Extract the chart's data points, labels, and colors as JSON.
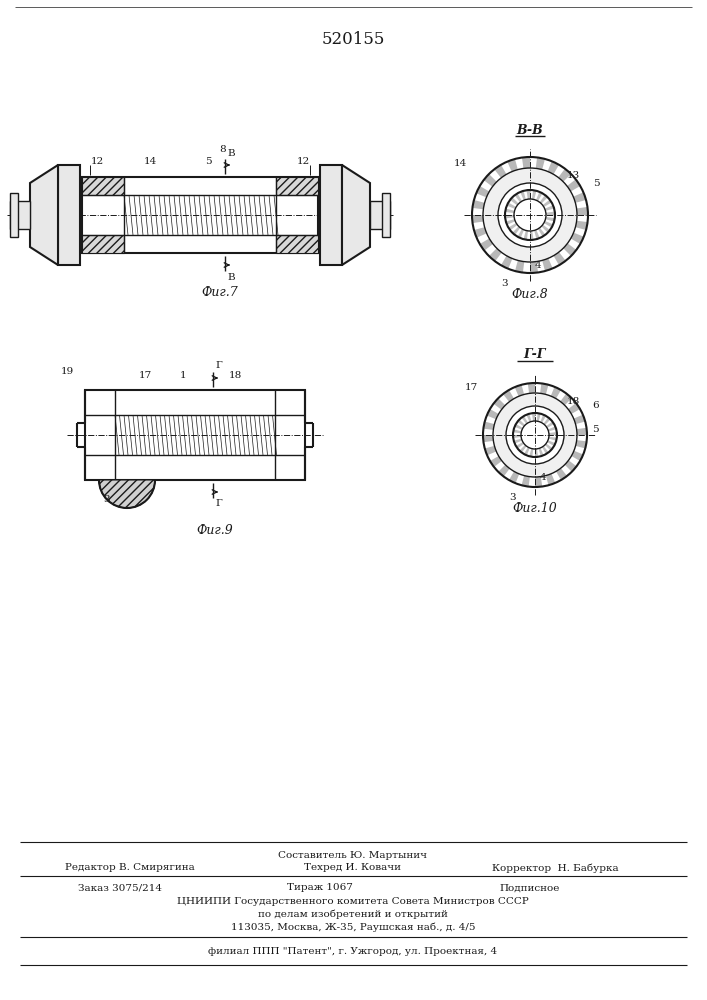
{
  "patent_number": "520155",
  "bg_color": "#ffffff",
  "line_color": "#1a1a1a",
  "fig7_caption": "Фиг.7",
  "fig8_caption": "Фиг.8",
  "fig9_caption": "Фиг.9",
  "fig10_caption": "Фиг.10",
  "footer_line1": "Составитель Ю. Мартынич",
  "footer_line2_left": "Редактор В. Смирягина",
  "footer_line2_mid": "Техред И. Ковачи",
  "footer_line2_right": "Корректор  Н. Бабурка",
  "footer_line3_a": "Заказ 3075/214",
  "footer_line3_b": "Тираж 1067",
  "footer_line3_c": "Подписное",
  "footer_line4": "ЦНИИПИ Государственного комитета Совета Министров СССР",
  "footer_line5": "по делам изобретений и открытий",
  "footer_line6": "113035, Москва, Ж-35, Раушская наб., д. 4/5",
  "footer_line7": "филиал ППП \"Патент\", г. Ужгород, ул. Проектная, 4"
}
